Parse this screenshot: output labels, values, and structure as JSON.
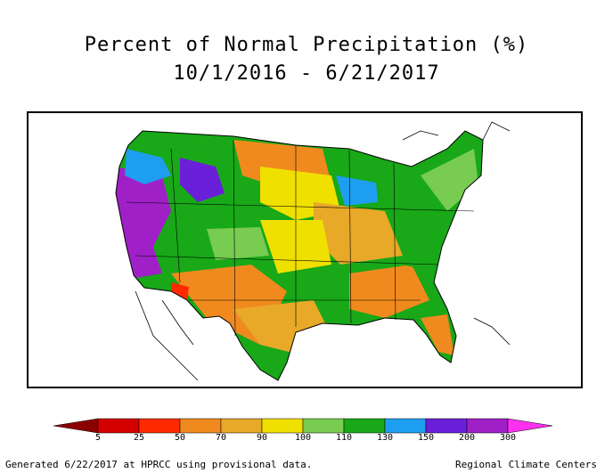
{
  "title": {
    "line1": "Percent of Normal Precipitation (%)",
    "line2": "10/1/2016 - 6/21/2017"
  },
  "map": {
    "region": "Contiguous United States",
    "colors": {
      "background": "#ffffff",
      "outline": "#000000"
    }
  },
  "legend": {
    "ticks": [
      "5",
      "25",
      "50",
      "70",
      "90",
      "100",
      "110",
      "130",
      "150",
      "200",
      "300"
    ],
    "bins": [
      {
        "color": "#8b0000"
      },
      {
        "color": "#d40000"
      },
      {
        "color": "#ff2a00"
      },
      {
        "color": "#f08a1e"
      },
      {
        "color": "#e8a828"
      },
      {
        "color": "#f0e000"
      },
      {
        "color": "#78cc50"
      },
      {
        "color": "#18a818"
      },
      {
        "color": "#1e9ef0"
      },
      {
        "color": "#6a1fd8"
      },
      {
        "color": "#a020c8"
      },
      {
        "color": "#ff30f0"
      }
    ]
  },
  "footer": {
    "left": "Generated 6/22/2017 at HPRCC using provisional data.",
    "right": "Regional Climate Centers"
  }
}
